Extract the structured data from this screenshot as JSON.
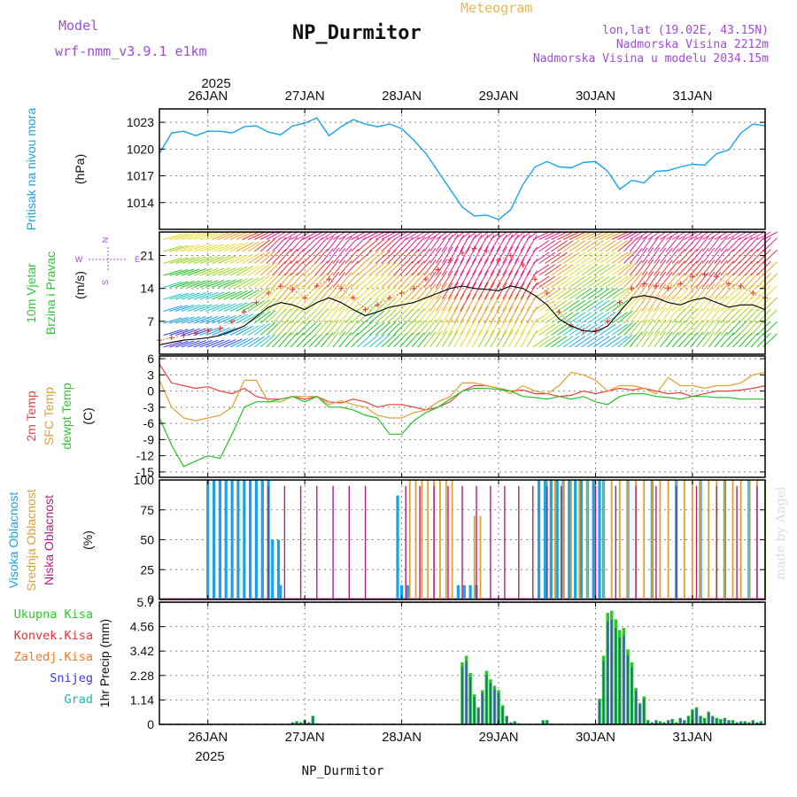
{
  "header": {
    "model_label": "Model",
    "model_name": "wrf-nmm_v3.9.1  e1km",
    "title": "NP_Durmitor",
    "product": "Meteogram",
    "lonlat": "lon,lat (19.02E, 43.15N)",
    "elevation": "Nadmorska Visina 2212m",
    "model_elevation": "Nadmorska Visina u modelu 2034.15m"
  },
  "footer": {
    "station": "NP_Durmitor",
    "credit": "made by Angel"
  },
  "colors": {
    "pressure": "#1aa3e8",
    "wind_speed": "#000000",
    "wind_gust": "#e8342c",
    "t2m": "#e84040",
    "sfc_temp": "#e0a030",
    "dewpoint": "#22c422",
    "cloud_high": "#1aa3e8",
    "cloud_mid": "#e0a030",
    "cloud_low": "#b0207e",
    "precip_total": "#2ec82e",
    "precip_conv": "#e83030",
    "precip_frz": "#f07828",
    "precip_snow": "#3a3ad8",
    "precip_grad": "#1ab8b0"
  },
  "time_axis": {
    "year": "2025",
    "day_labels": [
      "26JAN",
      "27JAN",
      "28JAN",
      "29JAN",
      "30JAN",
      "31JAN"
    ],
    "domain_hours": [
      -12,
      138
    ],
    "note_hours": "hours since 26JAN 00 UTC (tick positions)"
  },
  "chart_data": [
    {
      "type": "line",
      "panel": "pressure",
      "ylabel": "Pritisak na nivou mora",
      "unit": "(hPa)",
      "yticks": [
        1014,
        1017,
        1020,
        1023
      ],
      "ylim": [
        1011,
        1024.5
      ],
      "x": [
        -12,
        -9,
        -6,
        -3,
        0,
        3,
        6,
        9,
        12,
        15,
        18,
        21,
        24,
        27,
        30,
        33,
        36,
        39,
        42,
        45,
        48,
        51,
        54,
        57,
        60,
        63,
        66,
        69,
        72,
        75,
        78,
        81,
        84,
        87,
        90,
        93,
        96,
        99,
        102,
        105,
        108,
        111,
        114,
        117,
        120,
        123,
        126,
        129,
        132,
        135,
        138
      ],
      "values": [
        1019.5,
        1021.8,
        1022,
        1021.5,
        1022,
        1022,
        1021.8,
        1022.5,
        1022.6,
        1021.9,
        1021.6,
        1022.6,
        1022.9,
        1023.5,
        1021.5,
        1022.5,
        1023.3,
        1022.8,
        1022.5,
        1022.8,
        1022.3,
        1021,
        1019.5,
        1017.5,
        1015.5,
        1013.5,
        1012.5,
        1012.6,
        1012.1,
        1013.2,
        1016,
        1018,
        1018.6,
        1018,
        1017.9,
        1018.5,
        1018.6,
        1017.5,
        1015.5,
        1016.5,
        1016.2,
        1017.5,
        1017.6,
        1018,
        1018.3,
        1018.2,
        1019.5,
        1019.9,
        1021.8,
        1022.8,
        1022.6
      ]
    },
    {
      "type": "line",
      "panel": "wind",
      "ylabel": [
        "10m Vjetar",
        "Brzina i Pravac"
      ],
      "unit": "(m/s)",
      "yticks": [
        7,
        14,
        21
      ],
      "ylim": [
        0,
        26
      ],
      "compass": [
        "N",
        "E",
        "W",
        "S"
      ],
      "x": [
        -12,
        -9,
        -6,
        -3,
        0,
        3,
        6,
        9,
        12,
        15,
        18,
        21,
        24,
        27,
        30,
        33,
        36,
        39,
        42,
        45,
        48,
        51,
        54,
        57,
        60,
        63,
        66,
        69,
        72,
        75,
        78,
        81,
        84,
        87,
        90,
        93,
        96,
        99,
        102,
        105,
        108,
        111,
        114,
        117,
        120,
        123,
        126,
        129,
        132,
        135,
        138
      ],
      "series": [
        {
          "name": "speed",
          "values": [
            2,
            2.5,
            3,
            3.2,
            3.5,
            4,
            5,
            6,
            8,
            10,
            11,
            10.5,
            9.5,
            11,
            12,
            11,
            9.5,
            8.2,
            9,
            10,
            10.5,
            11,
            12,
            13,
            14,
            14.5,
            14,
            13.8,
            13.5,
            14.5,
            14,
            12.5,
            10.5,
            7.5,
            6,
            5,
            4.8,
            6,
            9,
            12,
            12.5,
            12,
            11,
            10.5,
            11.5,
            12,
            11,
            10,
            10.5,
            10.5,
            9.5
          ]
        },
        {
          "name": "gust",
          "values": [
            3,
            3.5,
            4,
            4.5,
            5,
            5.5,
            7,
            9,
            11,
            13,
            14.5,
            13.8,
            12,
            14.5,
            16,
            14,
            12,
            9.5,
            10.5,
            12,
            13,
            14,
            16,
            18,
            20,
            21.5,
            22.5,
            22,
            20,
            21,
            19,
            16,
            13,
            9,
            6,
            5,
            5,
            7,
            11,
            14,
            15,
            14.5,
            14,
            15,
            16.5,
            17,
            16.5,
            15,
            14.5,
            13,
            12
          ]
        }
      ],
      "barb_colors": [
        "#7a22d4",
        "#3344ee",
        "#1aa3e8",
        "#22c4c4",
        "#22c422",
        "#9ad41c",
        "#e6dc2c",
        "#f0a020",
        "#ee3030",
        "#e8208c"
      ]
    },
    {
      "type": "line",
      "panel": "temperature",
      "ylabel": [
        "2m Temp",
        "SFC Temp",
        "dewpt Temp"
      ],
      "unit": "(C)",
      "yticks": [
        -15,
        -12,
        -9,
        -6,
        -3,
        0,
        3,
        6
      ],
      "ylim": [
        -16,
        6.5
      ],
      "x": [
        -12,
        -9,
        -6,
        -3,
        0,
        3,
        6,
        9,
        12,
        15,
        18,
        21,
        24,
        27,
        30,
        33,
        36,
        39,
        42,
        45,
        48,
        51,
        54,
        57,
        60,
        63,
        66,
        69,
        72,
        75,
        78,
        81,
        84,
        87,
        90,
        93,
        96,
        99,
        102,
        105,
        108,
        111,
        114,
        117,
        120,
        123,
        126,
        129,
        132,
        135,
        138
      ],
      "series": [
        {
          "name": "2m Temp",
          "values": [
            5,
            1.5,
            1,
            0.5,
            0.8,
            0,
            -0.5,
            0.5,
            -1,
            -1.5,
            -1.5,
            -1,
            -1.5,
            -1,
            -2,
            -2.2,
            -1.5,
            -2,
            -3,
            -2.5,
            -2.5,
            -3,
            -3.5,
            -3,
            -2,
            0,
            1,
            1,
            0.5,
            0,
            0.2,
            -0.5,
            -0.5,
            -1,
            -0.8,
            0,
            -0.5,
            0,
            0.5,
            0.2,
            0.5,
            0,
            -0.5,
            -0.3,
            -1,
            -0.5,
            0,
            0,
            0.2,
            0.5,
            1
          ]
        },
        {
          "name": "SFC Temp",
          "values": [
            2,
            -3,
            -5,
            -5.5,
            -5,
            -4.5,
            -3,
            2,
            2,
            -2,
            -2,
            -1,
            -1,
            -1,
            -2.5,
            -1.8,
            -2.5,
            -3,
            -4.5,
            -5,
            -5,
            -4,
            -3.5,
            -2,
            -1,
            1.5,
            1.5,
            1,
            0.5,
            -0.5,
            1,
            0,
            -0.5,
            1,
            3.5,
            3,
            2,
            0,
            1,
            1,
            0.5,
            -0.5,
            2.5,
            1,
            1,
            0.5,
            1,
            1,
            1.5,
            3,
            3.5
          ]
        },
        {
          "name": "dewpt Temp",
          "values": [
            -5,
            -10,
            -14,
            -13,
            -12,
            -12.5,
            -8,
            -3,
            -2,
            -2,
            -1.5,
            -1,
            -2,
            -1,
            -3,
            -3,
            -3.5,
            -4.5,
            -5,
            -8,
            -8,
            -5.5,
            -4,
            -3,
            -1.5,
            0,
            0.5,
            0.5,
            0.3,
            0,
            -1,
            -1.2,
            -1.5,
            -1,
            -1.5,
            -1,
            -2,
            -2.5,
            -1,
            -0.5,
            -0.5,
            -1,
            -1.2,
            -1.5,
            -1,
            -1,
            -1.2,
            -1.2,
            -1.5,
            -1.5,
            -1.5
          ]
        }
      ]
    },
    {
      "type": "bar",
      "panel": "clouds",
      "ylabel": [
        "Visoka Oblacnost",
        "Srednja Oblacnost",
        "Niska Oblacnost"
      ],
      "unit": "(%)",
      "yticks": [
        0,
        25,
        50,
        75,
        100
      ],
      "ylim": [
        0,
        100
      ],
      "segments": [
        {
          "name": "Visoka Oblacnost",
          "from": 0,
          "to": 16,
          "value": 100,
          "step": 1.5
        },
        {
          "name": "Visoka Oblacnost",
          "from": 16,
          "to": 18,
          "value": 50,
          "step": 1.5
        },
        {
          "name": "Visoka Oblacnost",
          "from": 18,
          "to": 19,
          "value": 12,
          "step": 1.5
        },
        {
          "name": "Visoka Oblacnost",
          "from": 47,
          "to": 48,
          "value": 87,
          "step": 1.5
        },
        {
          "name": "Visoka Oblacnost",
          "from": 48,
          "to": 50,
          "value": 12,
          "step": 1.5
        },
        {
          "name": "Visoka Oblacnost",
          "from": 62,
          "to": 67,
          "value": 12,
          "step": 1.5
        },
        {
          "name": "Visoka Oblacnost",
          "from": 82,
          "to": 98,
          "value": 100,
          "step": 1.5
        },
        {
          "name": "Visoka Oblacnost",
          "from": 98,
          "to": 138,
          "value": 100,
          "step": 6
        },
        {
          "name": "Srednja Oblacnost",
          "from": 50,
          "to": 61,
          "value": 100,
          "step": 1.5
        },
        {
          "name": "Srednja Oblacnost",
          "from": 66,
          "to": 68,
          "value": 70,
          "step": 1.5
        },
        {
          "name": "Srednja Oblacnost",
          "from": 84,
          "to": 138,
          "value": 100,
          "step": 2
        },
        {
          "name": "Niska Oblacnost",
          "from": 15,
          "to": 40,
          "value": 95,
          "step": 4
        },
        {
          "name": "Niska Oblacnost",
          "from": 49,
          "to": 90,
          "value": 95,
          "step": 3.5
        },
        {
          "name": "Niska Oblacnost",
          "from": 96,
          "to": 136,
          "value": 95,
          "step": 5
        }
      ]
    },
    {
      "type": "bar",
      "panel": "precipitation",
      "ylabel": "1hr Precip (mm)",
      "unit": "(mm)",
      "legend": [
        "Ukupna Kisa",
        "Konvek.Kisa",
        "Zaledj.Kisa",
        "Snijeg",
        "Grad"
      ],
      "yticks": [
        0,
        1.14,
        2.28,
        3.42,
        4.56,
        5.7
      ],
      "ylim": [
        0,
        5.7
      ],
      "x": [
        21,
        22,
        23,
        24,
        25,
        26,
        27,
        63,
        64,
        65,
        66,
        67,
        68,
        69,
        70,
        71,
        72,
        73,
        74,
        75,
        76,
        77,
        83,
        84,
        97,
        98,
        99,
        100,
        101,
        102,
        103,
        104,
        105,
        106,
        107,
        108,
        109,
        110,
        111,
        112,
        113,
        114,
        115,
        116,
        117,
        118,
        119,
        120,
        121,
        122,
        123,
        124,
        125,
        126,
        127,
        128,
        129,
        130,
        131,
        132,
        133,
        134,
        135,
        136,
        137
      ],
      "values": [
        0.1,
        0.15,
        0.1,
        0.2,
        0.1,
        0.4,
        0.05,
        2.9,
        3.2,
        2.4,
        1.4,
        0.8,
        1.6,
        2.5,
        2.1,
        1.8,
        1.6,
        0.9,
        0.4,
        0.1,
        0.15,
        0.05,
        0.2,
        0.2,
        1.2,
        3.2,
        5.2,
        5.3,
        4.9,
        4.4,
        4.5,
        3.5,
        2.9,
        1.7,
        1.0,
        1.3,
        0.2,
        0.1,
        0.2,
        0.15,
        0.1,
        0.2,
        0.25,
        0.1,
        0.3,
        0.2,
        0.4,
        0.7,
        0.8,
        0.4,
        0.3,
        0.6,
        0.4,
        0.3,
        0.25,
        0.3,
        0.2,
        0.2,
        0.1,
        0.15,
        0.15,
        0.1,
        0.2,
        0.1,
        0.15
      ]
    }
  ]
}
